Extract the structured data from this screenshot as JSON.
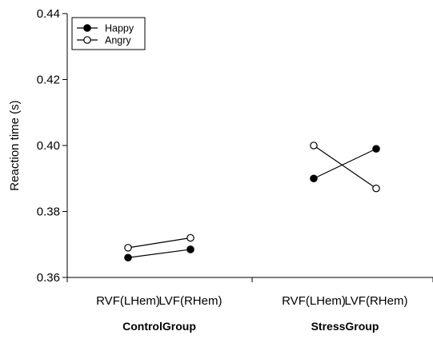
{
  "chart_data": {
    "type": "line",
    "title": "",
    "ylabel": "Reaction time (s)",
    "xlabel": "",
    "ylim": [
      0.36,
      0.44
    ],
    "yticks": [
      0.36,
      0.38,
      0.4,
      0.42,
      0.44
    ],
    "ytick_labels": [
      "0.36",
      "0.38",
      "0.40",
      "0.42",
      "0.44"
    ],
    "x_tick_labels": [
      "RVF(LHem)",
      "LVF(RHem)",
      "RVF(LHem)",
      "LVF(RHem)"
    ],
    "groups": [
      "ControlGroup",
      "StressGroup"
    ],
    "legend_position": "top-left",
    "grid": false,
    "series": [
      {
        "name": "Happy",
        "marker": "filled-circle",
        "color": "#000000",
        "values": {
          "ControlGroup": [
            0.366,
            0.3685
          ],
          "StressGroup": [
            0.39,
            0.399
          ]
        }
      },
      {
        "name": "Angry",
        "marker": "open-circle",
        "color": "#000000",
        "values": {
          "ControlGroup": [
            0.369,
            0.372
          ],
          "StressGroup": [
            0.4,
            0.387
          ]
        }
      }
    ]
  }
}
